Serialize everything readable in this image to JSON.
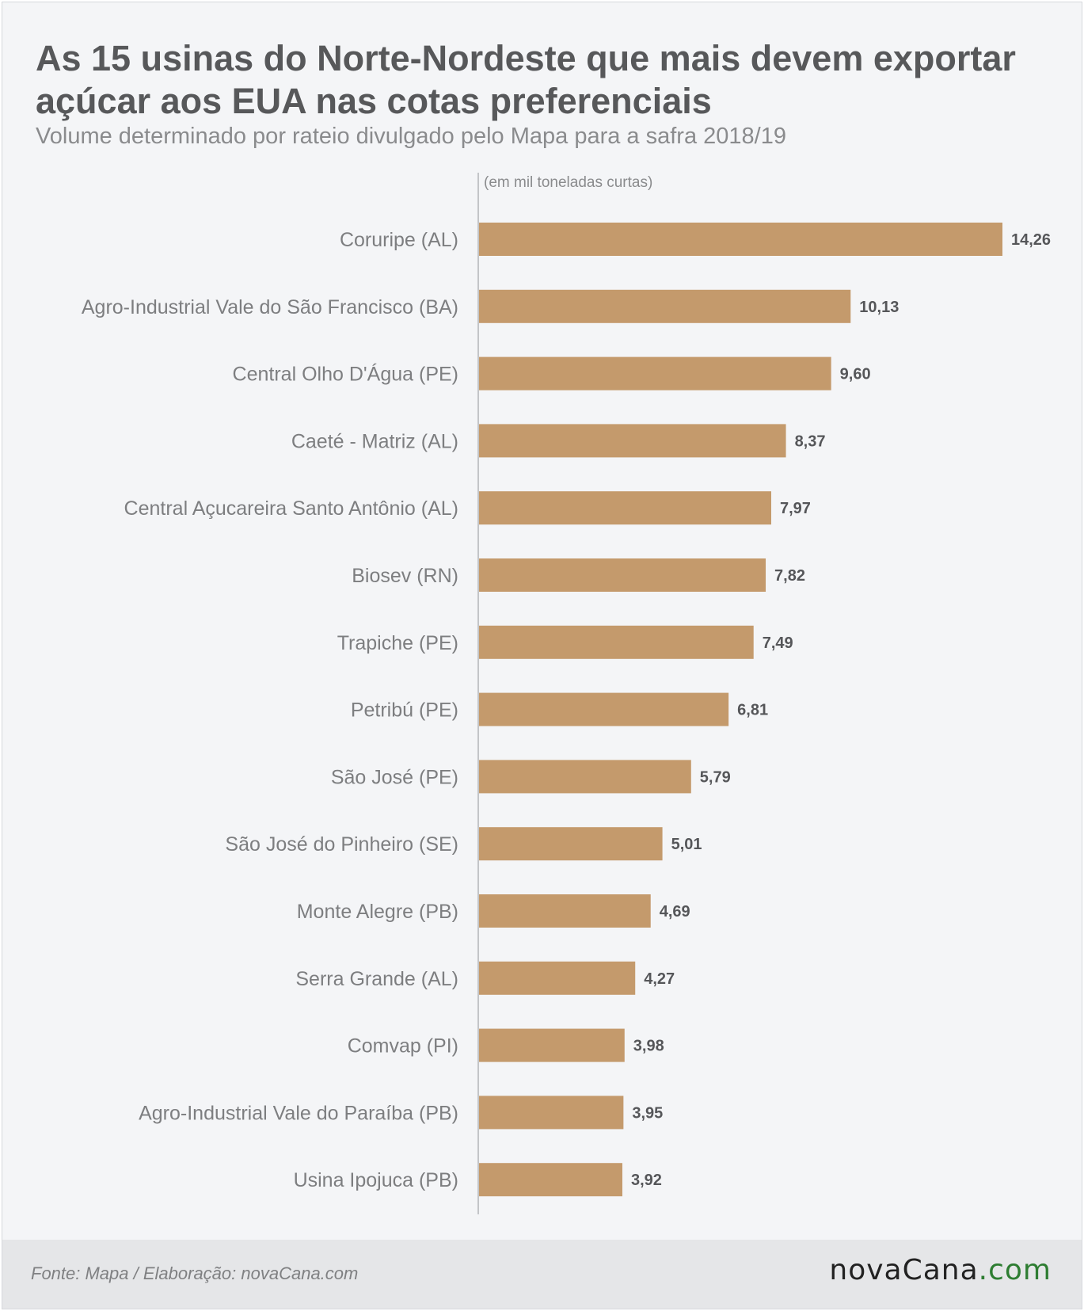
{
  "title_line1": "As 15 usinas do Norte-Nordeste que mais devem exportar",
  "title_line2": "açúcar aos EUA nas cotas preferenciais",
  "subtitle": "Volume determinado por rateio divulgado pelo Mapa para a safra 2018/19",
  "footer": {
    "source": "Fonte: Mapa / Elaboração: novaCana.com",
    "logo_main": "novaCana",
    "logo_dot": ".",
    "logo_tld": "com"
  },
  "colors": {
    "bar": "#c49a6c",
    "axis": "#c3c5c8",
    "label": "#7d7e80",
    "value": "#555659"
  },
  "chart_data": {
    "type": "bar",
    "orientation": "horizontal",
    "unit_label": "(em mil toneladas curtas)",
    "categories": [
      "Coruripe (AL)",
      "Agro-Industrial Vale do São Francisco (BA)",
      "Central Olho D'Água (PE)",
      "Caeté - Matriz (AL)",
      "Central Açucareira Santo Antônio (AL)",
      "Biosev (RN)",
      "Trapiche (PE)",
      "Petribú (PE)",
      "São José (PE)",
      "São José do Pinheiro (SE)",
      "Monte Alegre (PB)",
      "Serra Grande (AL)",
      "Comvap (PI)",
      "Agro-Industrial Vale do Paraíba (PB)",
      "Usina Ipojuca (PB)"
    ],
    "values": [
      14.26,
      10.13,
      9.6,
      8.37,
      7.97,
      7.82,
      7.49,
      6.81,
      5.79,
      5.01,
      4.69,
      4.27,
      3.98,
      3.95,
      3.92
    ],
    "value_labels": [
      "14,26",
      "10,13",
      "9,60",
      "8,37",
      "7,97",
      "7,82",
      "7,49",
      "6,81",
      "5,79",
      "5,01",
      "4,69",
      "4,27",
      "3,98",
      "3,95",
      "3,92"
    ],
    "xlim": [
      0,
      14.26
    ],
    "grid": false,
    "legend": "none"
  }
}
